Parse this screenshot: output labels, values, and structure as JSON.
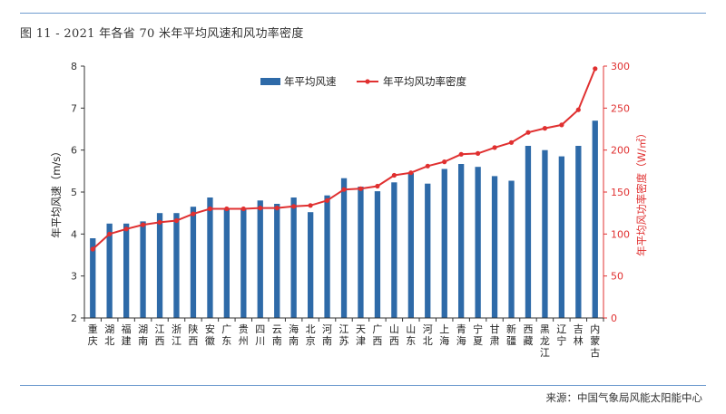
{
  "figure_title": "图 11 - 2021 年各省 70 米年平均风速和风功率密度",
  "source_text": "来源：中国气象局风能太阳能中心",
  "colors": {
    "bar": "#2e6aa8",
    "line": "#e03030",
    "rule": "#6f9ccf",
    "axis_right": "#e03030"
  },
  "chart_data": {
    "type": "bar+line",
    "categories": [
      "重庆",
      "湖北",
      "福建",
      "湖南",
      "江西",
      "浙江",
      "陕西",
      "安徽",
      "广东",
      "贵州",
      "四川",
      "云南",
      "海南",
      "北京",
      "河南",
      "江苏",
      "天津",
      "广西",
      "山西",
      "山东",
      "河北",
      "上海",
      "青海",
      "宁夏",
      "甘肃",
      "新疆",
      "西藏",
      "黑龙江",
      "辽宁",
      "吉林",
      "内蒙古"
    ],
    "category_labels": [
      [
        "重",
        "庆"
      ],
      [
        "湖",
        "北"
      ],
      [
        "福",
        "建"
      ],
      [
        "湖",
        "南"
      ],
      [
        "江",
        "西"
      ],
      [
        "浙",
        "江"
      ],
      [
        "陕",
        "西"
      ],
      [
        "安",
        "徽"
      ],
      [
        "广",
        "东"
      ],
      [
        "贵",
        "州"
      ],
      [
        "四",
        "川"
      ],
      [
        "云",
        "南"
      ],
      [
        "海",
        "南"
      ],
      [
        "北",
        "京"
      ],
      [
        "河",
        "南"
      ],
      [
        "江",
        "苏"
      ],
      [
        "天",
        "津"
      ],
      [
        "广",
        "西"
      ],
      [
        "山",
        "西"
      ],
      [
        "山",
        "东"
      ],
      [
        "河",
        "北"
      ],
      [
        "上",
        "海"
      ],
      [
        "青",
        "海"
      ],
      [
        "宁",
        "夏"
      ],
      [
        "甘",
        "肃"
      ],
      [
        "新",
        "疆"
      ],
      [
        "西",
        "藏"
      ],
      [
        "黑",
        "龙",
        "江"
      ],
      [
        "辽",
        "宁"
      ],
      [
        "吉",
        "林"
      ],
      [
        "内",
        "蒙",
        "古"
      ]
    ],
    "series": [
      {
        "name": "年平均风速",
        "type": "bar",
        "axis": "left",
        "values": [
          3.9,
          4.25,
          4.25,
          4.3,
          4.5,
          4.5,
          4.65,
          4.87,
          4.6,
          4.6,
          4.8,
          4.72,
          4.87,
          4.52,
          4.92,
          5.33,
          5.13,
          5.02,
          5.23,
          5.45,
          5.2,
          5.55,
          5.67,
          5.6,
          5.38,
          5.27,
          6.1,
          6.0,
          5.85,
          6.1,
          6.7
        ]
      },
      {
        "name": "年平均风功率密度",
        "type": "line",
        "axis": "right",
        "values": [
          82,
          100,
          106,
          111,
          114,
          116,
          124,
          130,
          130,
          130,
          131,
          131,
          133,
          134,
          140,
          153,
          154,
          157,
          170,
          173,
          181,
          186,
          195,
          196,
          203,
          209,
          221,
          226,
          230,
          248,
          297
        ]
      }
    ],
    "ylabel": "年平均风速（m/s）",
    "ylim": [
      2,
      8
    ],
    "yticks": [
      2,
      3,
      4,
      5,
      6,
      7,
      8
    ],
    "y2label": "年平均风功率密度（W/㎡）",
    "y2lim": [
      0,
      300
    ],
    "y2ticks": [
      0,
      50,
      100,
      150,
      200,
      250,
      300
    ],
    "grid": false,
    "legend_position": "top-left"
  }
}
